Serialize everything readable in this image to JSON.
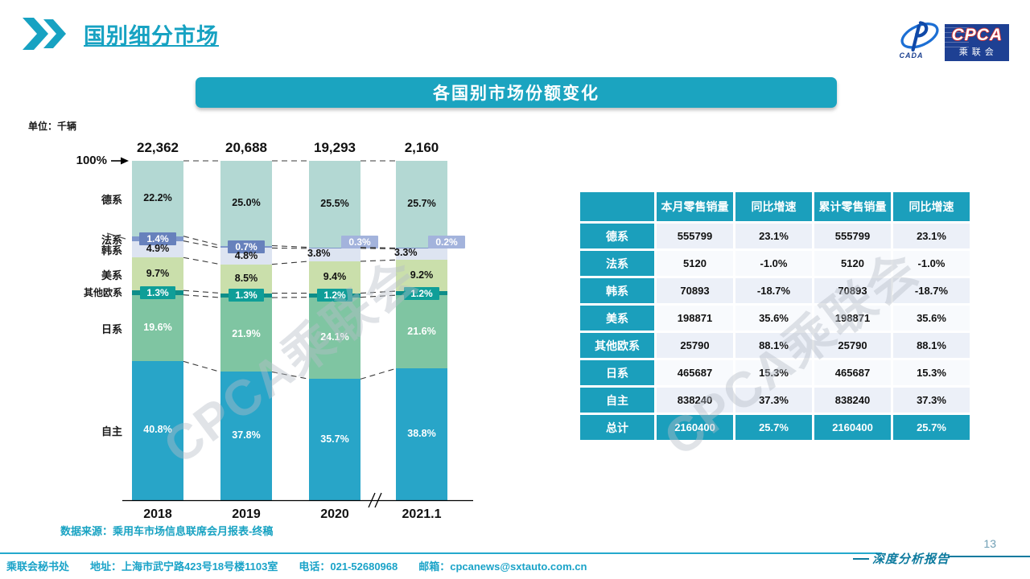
{
  "header": {
    "title": "国别细分市场"
  },
  "logo": {
    "cpca": "CPCA",
    "sub": "乘联会",
    "swoosh_text": "CADA"
  },
  "banner": {
    "title": "各国别市场份额变化"
  },
  "unit_label": "单位：千辆",
  "watermark": "CPCA乘联会",
  "chart_data": {
    "type": "bar",
    "subtype": "100pct-stacked-column",
    "title": "各国别市场份额变化",
    "unit": "千辆",
    "categories": [
      "2018",
      "2019",
      "2020",
      "2021.1"
    ],
    "totals": [
      "22,362",
      "20,688",
      "19,293",
      "2,160"
    ],
    "axis_top_label": "100%",
    "axis_break_between": [
      "2020",
      "2021.1"
    ],
    "ylim": [
      0,
      100
    ],
    "legend_position": "left-of-bars",
    "series": [
      {
        "name": "德系",
        "values": [
          22.2,
          25.0,
          25.5,
          25.7
        ],
        "color": "#b3d8d3",
        "label_style": "dark"
      },
      {
        "name": "法系",
        "values": [
          1.4,
          0.7,
          0.3,
          0.2
        ],
        "color": "#7e97cb",
        "label_style": "box-blue"
      },
      {
        "name": "韩系",
        "values": [
          4.9,
          4.8,
          3.8,
          3.3
        ],
        "color": "#dde4f1",
        "label_style": "dark"
      },
      {
        "name": "美系",
        "values": [
          9.7,
          8.5,
          9.4,
          9.2
        ],
        "color": "#cadfab",
        "label_style": "dark"
      },
      {
        "name": "其他欧系",
        "values": [
          1.3,
          1.3,
          1.2,
          1.2
        ],
        "color": "#0e8e89",
        "label_style": "box-teal"
      },
      {
        "name": "日系",
        "values": [
          19.6,
          21.9,
          24.1,
          21.6
        ],
        "color": "#7fc5a2",
        "label_style": "white"
      },
      {
        "name": "自主",
        "values": [
          40.8,
          37.8,
          35.7,
          38.8
        ],
        "color": "#28a5c8",
        "label_style": "white"
      }
    ]
  },
  "source_note": "数据来源：乘用车市场信息联席会月报表-终稿",
  "table": {
    "headers": [
      "",
      "本月零售销量",
      "同比增速",
      "累计零售销量",
      "同比增速"
    ],
    "rows": [
      {
        "label": "德系",
        "cells": [
          "555799",
          "23.1%",
          "555799",
          "23.1%"
        ],
        "is_total": false
      },
      {
        "label": "法系",
        "cells": [
          "5120",
          "-1.0%",
          "5120",
          "-1.0%"
        ],
        "is_total": false
      },
      {
        "label": "韩系",
        "cells": [
          "70893",
          "-18.7%",
          "70893",
          "-18.7%"
        ],
        "is_total": false
      },
      {
        "label": "美系",
        "cells": [
          "198871",
          "35.6%",
          "198871",
          "35.6%"
        ],
        "is_total": false
      },
      {
        "label": "其他欧系",
        "cells": [
          "25790",
          "88.1%",
          "25790",
          "88.1%"
        ],
        "is_total": false
      },
      {
        "label": "日系",
        "cells": [
          "465687",
          "15.3%",
          "465687",
          "15.3%"
        ],
        "is_total": false
      },
      {
        "label": "自主",
        "cells": [
          "838240",
          "37.3%",
          "838240",
          "37.3%"
        ],
        "is_total": false
      },
      {
        "label": "总计",
        "cells": [
          "2160400",
          "25.7%",
          "2160400",
          "25.7%"
        ],
        "is_total": true
      }
    ]
  },
  "footer": {
    "secretariat": "乘联会秘书处",
    "address": "地址：上海市武宁路423号18号楼1103室",
    "phone": "电话：021-52680968",
    "email": "邮箱：cpcanews@sxtauto.com.cn",
    "page_number": "13",
    "report_label": "深度分析报告"
  },
  "colors": {
    "accent_teal": "#1ba4c0",
    "title_teal": "#17a2c2",
    "table_cell_bg": "#ecf0f8",
    "box_blue_dark": "#6781bc",
    "box_blue_light": "#a3b3dc",
    "box_teal": "#0f9e98",
    "logo_blue": "#1e4093"
  }
}
